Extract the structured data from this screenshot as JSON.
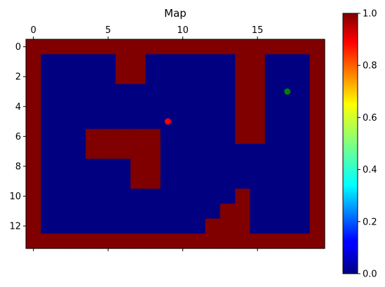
{
  "chart_data": {
    "type": "heatmap",
    "title": "Map",
    "colormap": "jet",
    "x_range": [
      -0.5,
      19.5
    ],
    "y_range": [
      13.5,
      -0.5
    ],
    "x_ticks": [
      0,
      5,
      10,
      15
    ],
    "y_ticks": [
      0,
      2,
      4,
      6,
      8,
      10,
      12
    ],
    "x_tick_labels": [
      "0",
      "5",
      "10",
      "15"
    ],
    "y_tick_labels": [
      "0",
      "2",
      "4",
      "6",
      "8",
      "10",
      "12"
    ],
    "x_axis_position": "top",
    "colorbar": {
      "range": [
        0.0,
        1.0
      ],
      "ticks": [
        0.0,
        0.2,
        0.4,
        0.6,
        0.8,
        1.0
      ],
      "tick_labels": [
        "0.0",
        "0.2",
        "0.4",
        "0.6",
        "0.8",
        "1.0"
      ]
    },
    "grid": [
      [
        1,
        1,
        1,
        1,
        1,
        1,
        1,
        1,
        1,
        1,
        1,
        1,
        1,
        1,
        1,
        1,
        1,
        1,
        1,
        1
      ],
      [
        1,
        0,
        0,
        0,
        0,
        0,
        1,
        1,
        0,
        0,
        0,
        0,
        0,
        0,
        1,
        1,
        0,
        0,
        0,
        1
      ],
      [
        1,
        0,
        0,
        0,
        0,
        0,
        1,
        1,
        0,
        0,
        0,
        0,
        0,
        0,
        1,
        1,
        0,
        0,
        0,
        1
      ],
      [
        1,
        0,
        0,
        0,
        0,
        0,
        0,
        0,
        0,
        0,
        0,
        0,
        0,
        0,
        1,
        1,
        0,
        0,
        0,
        1
      ],
      [
        1,
        0,
        0,
        0,
        0,
        0,
        0,
        0,
        0,
        0,
        0,
        0,
        0,
        0,
        1,
        1,
        0,
        0,
        0,
        1
      ],
      [
        1,
        0,
        0,
        0,
        0,
        0,
        0,
        0,
        0,
        0,
        0,
        0,
        0,
        0,
        1,
        1,
        0,
        0,
        0,
        1
      ],
      [
        1,
        0,
        0,
        0,
        1,
        1,
        1,
        1,
        1,
        0,
        0,
        0,
        0,
        0,
        1,
        1,
        0,
        0,
        0,
        1
      ],
      [
        1,
        0,
        0,
        0,
        1,
        1,
        1,
        1,
        1,
        0,
        0,
        0,
        0,
        0,
        0,
        0,
        0,
        0,
        0,
        1
      ],
      [
        1,
        0,
        0,
        0,
        0,
        0,
        0,
        1,
        1,
        0,
        0,
        0,
        0,
        0,
        0,
        0,
        0,
        0,
        0,
        1
      ],
      [
        1,
        0,
        0,
        0,
        0,
        0,
        0,
        1,
        1,
        0,
        0,
        0,
        0,
        0,
        0,
        0,
        0,
        0,
        0,
        1
      ],
      [
        1,
        0,
        0,
        0,
        0,
        0,
        0,
        0,
        0,
        0,
        0,
        0,
        0,
        0,
        1,
        0,
        0,
        0,
        0,
        1
      ],
      [
        1,
        0,
        0,
        0,
        0,
        0,
        0,
        0,
        0,
        0,
        0,
        0,
        0,
        1,
        1,
        0,
        0,
        0,
        0,
        1
      ],
      [
        1,
        0,
        0,
        0,
        0,
        0,
        0,
        0,
        0,
        0,
        0,
        0,
        1,
        1,
        1,
        0,
        0,
        0,
        0,
        1
      ],
      [
        1,
        1,
        1,
        1,
        1,
        1,
        1,
        1,
        1,
        1,
        1,
        1,
        1,
        1,
        1,
        1,
        1,
        1,
        1,
        1
      ]
    ],
    "points": [
      {
        "x": 9,
        "y": 5,
        "color": "#ff0000"
      },
      {
        "x": 17,
        "y": 3,
        "color": "#008000"
      }
    ]
  }
}
